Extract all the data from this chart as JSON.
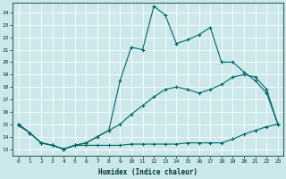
{
  "xlabel": "Humidex (Indice chaleur)",
  "ylabel": "",
  "bg_color": "#cce8ea",
  "grid_color": "#ffffff",
  "line_color": "#006666",
  "xlim": [
    -0.5,
    23.5
  ],
  "ylim": [
    12.5,
    24.8
  ],
  "xticks": [
    0,
    1,
    2,
    3,
    4,
    5,
    6,
    7,
    8,
    9,
    10,
    11,
    12,
    13,
    14,
    15,
    16,
    17,
    18,
    19,
    20,
    21,
    22,
    23
  ],
  "yticks": [
    13,
    14,
    15,
    16,
    17,
    18,
    19,
    20,
    21,
    22,
    23,
    24
  ],
  "curve1_x": [
    0,
    1,
    2,
    3,
    4,
    5,
    6,
    7,
    8,
    9,
    10,
    11,
    12,
    13,
    14,
    15,
    16,
    17,
    18,
    19,
    20,
    21,
    22,
    23
  ],
  "curve1_y": [
    14.9,
    14.3,
    13.5,
    13.3,
    13.0,
    13.3,
    13.3,
    13.3,
    13.3,
    13.3,
    13.4,
    13.4,
    13.4,
    13.4,
    13.4,
    13.5,
    13.5,
    13.5,
    13.5,
    13.8,
    14.2,
    14.5,
    14.8,
    15.0
  ],
  "curve2_x": [
    0,
    1,
    2,
    3,
    4,
    5,
    6,
    7,
    8,
    9,
    10,
    11,
    12,
    13,
    14,
    15,
    16,
    17,
    18,
    19,
    20,
    21,
    22,
    23
  ],
  "curve2_y": [
    15.0,
    14.3,
    13.5,
    13.3,
    13.0,
    13.3,
    13.5,
    14.0,
    14.5,
    15.0,
    15.8,
    16.5,
    17.2,
    17.8,
    18.0,
    17.8,
    17.5,
    17.8,
    18.2,
    18.8,
    19.0,
    18.8,
    17.8,
    15.0
  ],
  "curve3_x": [
    0,
    1,
    2,
    3,
    4,
    5,
    6,
    7,
    8,
    9,
    10,
    11,
    12,
    13,
    14,
    15,
    16,
    17,
    18,
    19,
    20,
    21,
    22,
    23
  ],
  "curve3_y": [
    15.0,
    14.3,
    13.5,
    13.3,
    13.0,
    13.3,
    13.5,
    14.0,
    14.5,
    18.5,
    21.2,
    21.0,
    24.5,
    23.8,
    21.5,
    21.8,
    22.2,
    22.8,
    20.0,
    20.0,
    19.2,
    18.5,
    17.5,
    15.0
  ]
}
